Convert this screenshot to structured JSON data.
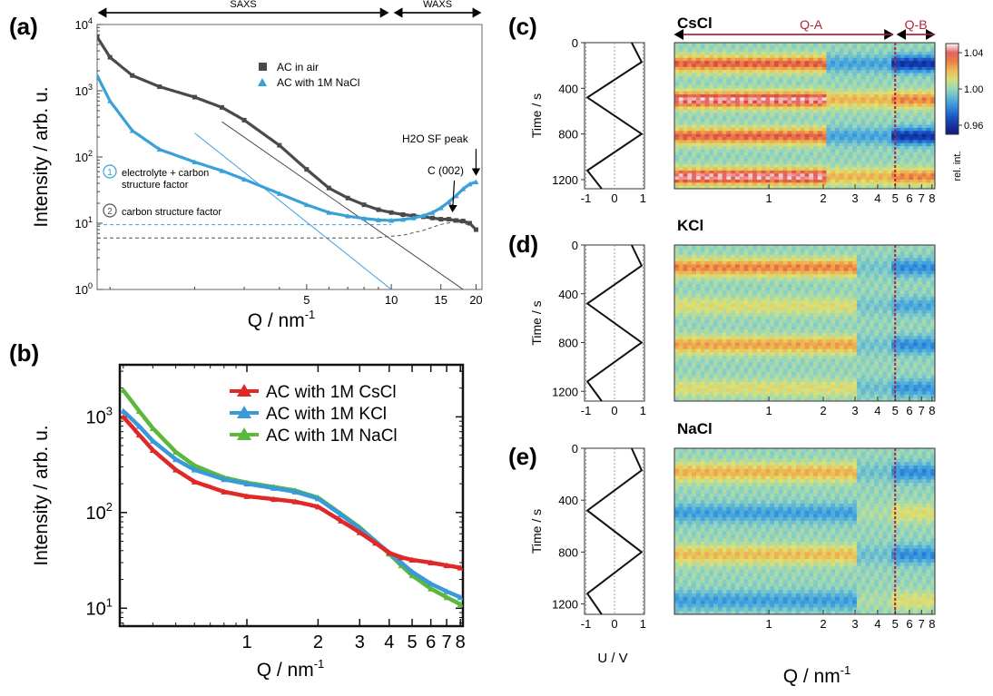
{
  "colors": {
    "air": "#4a4a4a",
    "nacl_a": "#3aa0d8",
    "cscl": "#e02828",
    "kcl": "#3a9ad8",
    "nacl_b": "#5cb83a",
    "q_region": "#b0243a"
  },
  "chart_data": [
    {
      "panel": "(a)",
      "type": "scatter",
      "xlabel": "Q / nm",
      "xlabel_exp": "-1",
      "ylabel": "Intensity / arb. u.",
      "xscale": "log",
      "yscale": "log",
      "xlim": [
        0.9,
        21
      ],
      "ylim": [
        1,
        10000
      ],
      "x_ticks": [
        5,
        10,
        15,
        20
      ],
      "y_ticks": [
        {
          "exp": "0",
          "value": 1
        },
        {
          "exp": "1",
          "value": 10
        },
        {
          "exp": "2",
          "value": 100
        },
        {
          "exp": "3",
          "value": 1000
        },
        {
          "exp": "4",
          "value": 10000
        }
      ],
      "regions": [
        {
          "name": "SAXS",
          "x": [
            0.9,
            10
          ]
        },
        {
          "name": "WAXS",
          "x": [
            10,
            21
          ]
        }
      ],
      "legend": "top-right",
      "series": [
        {
          "name": "AC in air",
          "marker": "square",
          "x": [
            0.9,
            1.0,
            1.2,
            1.5,
            2.0,
            2.5,
            3.0,
            4.0,
            5.0,
            6.0,
            7.0,
            8.0,
            9.0,
            10.0,
            11.0,
            12.0,
            13.0,
            14.0,
            15.0,
            16.0,
            17.0,
            18.0,
            19.0,
            20.0
          ],
          "y": [
            6500,
            3200,
            1700,
            1150,
            800,
            560,
            360,
            150,
            65,
            34,
            24,
            19,
            16,
            14.5,
            13.5,
            13,
            12.5,
            12,
            11.5,
            11.5,
            11,
            10.8,
            10,
            8
          ]
        },
        {
          "name": "AC with 1M NaCl",
          "marker": "triangle",
          "x": [
            0.9,
            1.0,
            1.2,
            1.5,
            2.0,
            2.5,
            3.0,
            4.0,
            5.0,
            6.0,
            7.0,
            8.0,
            9.0,
            10.0,
            11.0,
            12.0,
            13.0,
            14.0,
            15.0,
            16.0,
            17.0,
            18.0,
            19.0,
            20.0
          ],
          "y": [
            1700,
            700,
            250,
            130,
            84,
            62,
            46,
            28,
            19,
            14.5,
            12.8,
            11.8,
            11.2,
            11,
            11.4,
            12,
            13,
            14.5,
            17,
            21,
            26,
            33,
            39,
            42
          ]
        }
      ],
      "reference_lines": {
        "dashed_levels": [
          9.5,
          6
        ],
        "power_laws": [
          {
            "color": "air",
            "from": [
              2.5,
              340
            ],
            "to": [
              18,
              1
            ]
          },
          {
            "color": "nacl_a",
            "from": [
              2.0,
              230
            ],
            "to": [
              10,
              1
            ]
          }
        ],
        "carbon_sf_curve": {
          "x": [
            9,
            11,
            13,
            15,
            17,
            19,
            20
          ],
          "y": [
            6.1,
            6.6,
            7.8,
            9.6,
            10.6,
            9.4,
            8
          ]
        }
      },
      "annotations": [
        {
          "badge": "1",
          "text": [
            "electrolyte + carbon",
            "structure factor"
          ]
        },
        {
          "badge": "2",
          "text": [
            "carbon structure factor"
          ]
        },
        {
          "text": [
            "H2O SF peak"
          ],
          "points_to": [
            20,
            42
          ]
        },
        {
          "text": [
            "C (002)"
          ],
          "points_to": [
            16.5,
            11
          ]
        }
      ]
    },
    {
      "panel": "(b)",
      "type": "scatter",
      "xlabel": "Q / nm",
      "xlabel_exp": "-1",
      "ylabel": "Intensity / arb. u.",
      "xscale": "log",
      "yscale": "log",
      "xlim": [
        0.29,
        8.2
      ],
      "ylim": [
        6.5,
        3500
      ],
      "x_ticks": [
        1,
        2,
        3,
        4,
        5,
        6,
        7,
        8
      ],
      "y_ticks": [
        {
          "exp": "1",
          "value": 10
        },
        {
          "exp": "2",
          "value": 100
        },
        {
          "exp": "3",
          "value": 1000
        }
      ],
      "legend": "top-right",
      "series": [
        {
          "name": "AC with 1M CsCl",
          "color": "cscl",
          "x": [
            0.3,
            0.35,
            0.4,
            0.5,
            0.6,
            0.8,
            1.0,
            1.3,
            1.6,
            2.0,
            2.5,
            3.0,
            3.5,
            4.0,
            4.5,
            5.0,
            6.0,
            7.0,
            8.0
          ],
          "y": [
            1000,
            650,
            450,
            280,
            210,
            165,
            148,
            138,
            130,
            115,
            82,
            62,
            48,
            38,
            34,
            32,
            30,
            28,
            26.5
          ]
        },
        {
          "name": "AC with 1M KCl",
          "color": "kcl",
          "x": [
            0.3,
            0.35,
            0.4,
            0.5,
            0.6,
            0.8,
            1.0,
            1.3,
            1.6,
            2.0,
            2.5,
            3.0,
            3.5,
            4.0,
            4.5,
            5.0,
            6.0,
            7.0,
            8.0
          ],
          "y": [
            1150,
            800,
            560,
            360,
            280,
            222,
            200,
            180,
            165,
            140,
            95,
            68,
            50,
            38,
            30,
            24,
            18,
            15,
            13
          ]
        },
        {
          "name": "AC with 1M NaCl",
          "color": "nacl_b",
          "x": [
            0.3,
            0.35,
            0.4,
            0.5,
            0.6,
            0.8,
            1.0,
            1.3,
            1.6,
            2.0,
            2.5,
            3.0,
            3.5,
            4.0,
            4.5,
            5.0,
            6.0,
            7.0,
            8.0
          ],
          "y": [
            1900,
            1150,
            760,
            430,
            310,
            232,
            205,
            185,
            170,
            143,
            97,
            70,
            50,
            37,
            28,
            22,
            16,
            13,
            11
          ]
        }
      ]
    },
    {
      "panels": [
        "(c)",
        "(d)",
        "(e)"
      ],
      "type": "heatmap",
      "xlabel": "Q / nm",
      "xlabel_exp": "-1",
      "ylabel": "Time / s",
      "u_axis_label": "U / V",
      "xscale": "log",
      "x_ticks": [
        1,
        2,
        3,
        4,
        5,
        6,
        7,
        8
      ],
      "y_ticks": [
        0,
        400,
        800,
        1200
      ],
      "u_ticks": [
        -1,
        0,
        1
      ],
      "u_lim": [
        -1.05,
        1.05
      ],
      "t_lim": [
        0,
        1280
      ],
      "regions": [
        {
          "name": "Q-A",
          "x": [
            0.3,
            5
          ]
        },
        {
          "name": "Q-B",
          "x": [
            5,
            8.3
          ]
        }
      ],
      "voltage_profile": {
        "t": [
          0,
          170,
          480,
          800,
          1120,
          1280
        ],
        "u": [
          0.6,
          0.95,
          -0.95,
          0.95,
          -0.95,
          -0.45
        ]
      },
      "colorbar": {
        "label": "rel. int.",
        "ticks": [
          1.04,
          1.0,
          0.96
        ],
        "range": [
          0.95,
          1.05
        ]
      },
      "maps": [
        {
          "title": "CsCl",
          "bands": [
            {
              "t": 185,
              "qa": 0.035,
              "qb": -0.04,
              "q_end": 2.1
            },
            {
              "t": 500,
              "qa": 0.045,
              "qb": 0.03,
              "q_end": 2.1
            },
            {
              "t": 820,
              "qa": 0.035,
              "qb": -0.04,
              "q_end": 2.1
            },
            {
              "t": 1175,
              "qa": 0.045,
              "qb": 0.03,
              "q_end": 2.1
            }
          ]
        },
        {
          "title": "KCl",
          "bands": [
            {
              "t": 185,
              "qa": 0.03,
              "qb": -0.02,
              "q_end": 3.0
            },
            {
              "t": 500,
              "qa": 0.012,
              "qb": -0.014,
              "q_end": 3.0
            },
            {
              "t": 820,
              "qa": 0.025,
              "qb": -0.02,
              "q_end": 3.0
            },
            {
              "t": 1175,
              "qa": 0.012,
              "qb": -0.018,
              "q_end": 3.0
            }
          ]
        },
        {
          "title": "NaCl",
          "bands": [
            {
              "t": 185,
              "qa": 0.022,
              "qb": -0.02,
              "q_end": 3.0
            },
            {
              "t": 500,
              "qa": -0.016,
              "qb": 0.012,
              "q_end": 3.0
            },
            {
              "t": 820,
              "qa": 0.02,
              "qb": -0.02,
              "q_end": 3.0
            },
            {
              "t": 1175,
              "qa": -0.016,
              "qb": 0.012,
              "q_end": 3.0
            }
          ]
        }
      ]
    }
  ]
}
